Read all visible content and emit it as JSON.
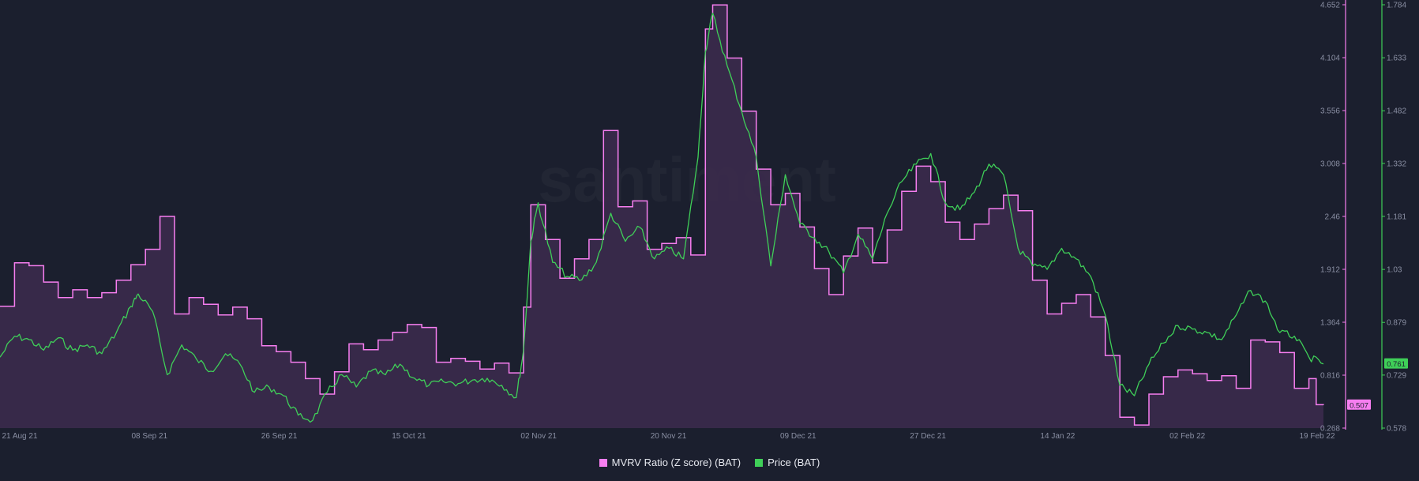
{
  "watermark": "santiment",
  "legend": {
    "mvrv_label": "MVRV Ratio (Z score) (BAT)",
    "price_label": "Price (BAT)"
  },
  "colors": {
    "background": "#1b1f2e",
    "mvrv_line": "#f77ef0",
    "mvrv_fill": "#3c2b4d",
    "price_line": "#3fcf58",
    "axis_text": "#8a8fa3",
    "grid": "#2a2f40"
  },
  "chart_data": {
    "type": "line",
    "title": "",
    "x_ticks": [
      "21 Aug 21",
      "08 Sep 21",
      "26 Sep 21",
      "15 Oct 21",
      "02 Nov 21",
      "20 Nov 21",
      "09 Dec 21",
      "27 Dec 21",
      "14 Jan 22",
      "02 Feb 22",
      "19 Feb 22"
    ],
    "x_range": [
      "2021-08-21",
      "2022-02-19"
    ],
    "grid": false,
    "legend_position": "bottom-center",
    "left_axis": {
      "name": "MVRV Ratio (Z score) (BAT)",
      "ticks": [
        "4.652",
        "4.104",
        "3.556",
        "3.008",
        "2.46",
        "1.912",
        "1.364",
        "0.816",
        "0.268"
      ],
      "range": [
        0.268,
        4.652
      ],
      "last_value_label": "0.507"
    },
    "right_axis": {
      "name": "Price (BAT)",
      "ticks": [
        "1.784",
        "1.633",
        "1.482",
        "1.332",
        "1.181",
        "1.03",
        "0.879",
        "0.729",
        "0.578"
      ],
      "range": [
        0.578,
        1.784
      ],
      "last_value_label": "0.761"
    },
    "series": [
      {
        "name": "MVRV Ratio (Z score) (BAT)",
        "axis": "left",
        "style": "step-area",
        "points": [
          [
            "2021-08-21",
            1.53
          ],
          [
            "2021-08-23",
            1.98
          ],
          [
            "2021-08-25",
            1.95
          ],
          [
            "2021-08-27",
            1.78
          ],
          [
            "2021-08-29",
            1.62
          ],
          [
            "2021-08-31",
            1.7
          ],
          [
            "2021-09-02",
            1.62
          ],
          [
            "2021-09-04",
            1.67
          ],
          [
            "2021-09-06",
            1.8
          ],
          [
            "2021-09-08",
            1.96
          ],
          [
            "2021-09-10",
            2.12
          ],
          [
            "2021-09-12",
            2.46
          ],
          [
            "2021-09-14",
            1.45
          ],
          [
            "2021-09-16",
            1.62
          ],
          [
            "2021-09-18",
            1.55
          ],
          [
            "2021-09-20",
            1.44
          ],
          [
            "2021-09-22",
            1.52
          ],
          [
            "2021-09-24",
            1.4
          ],
          [
            "2021-09-26",
            1.12
          ],
          [
            "2021-09-28",
            1.06
          ],
          [
            "2021-09-30",
            0.95
          ],
          [
            "2021-10-02",
            0.78
          ],
          [
            "2021-10-04",
            0.62
          ],
          [
            "2021-10-06",
            0.85
          ],
          [
            "2021-10-08",
            1.14
          ],
          [
            "2021-10-10",
            1.08
          ],
          [
            "2021-10-12",
            1.18
          ],
          [
            "2021-10-14",
            1.26
          ],
          [
            "2021-10-16",
            1.34
          ],
          [
            "2021-10-18",
            1.31
          ],
          [
            "2021-10-20",
            0.95
          ],
          [
            "2021-10-22",
            0.99
          ],
          [
            "2021-10-24",
            0.96
          ],
          [
            "2021-10-26",
            0.88
          ],
          [
            "2021-10-28",
            0.94
          ],
          [
            "2021-10-30",
            0.84
          ],
          [
            "2021-11-01",
            1.52
          ],
          [
            "2021-11-02",
            2.58
          ],
          [
            "2021-11-04",
            2.22
          ],
          [
            "2021-11-06",
            1.82
          ],
          [
            "2021-11-08",
            2.02
          ],
          [
            "2021-11-10",
            2.22
          ],
          [
            "2021-11-12",
            3.35
          ],
          [
            "2021-11-14",
            2.56
          ],
          [
            "2021-11-16",
            2.62
          ],
          [
            "2021-11-18",
            2.12
          ],
          [
            "2021-11-20",
            2.18
          ],
          [
            "2021-11-22",
            2.24
          ],
          [
            "2021-11-24",
            2.06
          ],
          [
            "2021-11-26",
            4.4
          ],
          [
            "2021-11-27",
            4.65
          ],
          [
            "2021-11-29",
            4.1
          ],
          [
            "2021-12-01",
            3.55
          ],
          [
            "2021-12-03",
            2.95
          ],
          [
            "2021-12-05",
            2.58
          ],
          [
            "2021-12-07",
            2.7
          ],
          [
            "2021-12-09",
            2.35
          ],
          [
            "2021-12-11",
            1.92
          ],
          [
            "2021-12-13",
            1.65
          ],
          [
            "2021-12-15",
            2.05
          ],
          [
            "2021-12-17",
            2.34
          ],
          [
            "2021-12-19",
            1.98
          ],
          [
            "2021-12-21",
            2.32
          ],
          [
            "2021-12-23",
            2.72
          ],
          [
            "2021-12-25",
            2.98
          ],
          [
            "2021-12-27",
            2.82
          ],
          [
            "2021-12-29",
            2.4
          ],
          [
            "2021-12-31",
            2.22
          ],
          [
            "2022-01-02",
            2.38
          ],
          [
            "2022-01-04",
            2.54
          ],
          [
            "2022-01-06",
            2.68
          ],
          [
            "2022-01-08",
            2.52
          ],
          [
            "2022-01-10",
            1.8
          ],
          [
            "2022-01-12",
            1.45
          ],
          [
            "2022-01-14",
            1.56
          ],
          [
            "2022-01-16",
            1.65
          ],
          [
            "2022-01-18",
            1.42
          ],
          [
            "2022-01-20",
            1.02
          ],
          [
            "2022-01-22",
            0.38
          ],
          [
            "2022-01-24",
            0.3
          ],
          [
            "2022-01-26",
            0.62
          ],
          [
            "2022-01-28",
            0.8
          ],
          [
            "2022-01-30",
            0.87
          ],
          [
            "2022-02-01",
            0.83
          ],
          [
            "2022-02-03",
            0.76
          ],
          [
            "2022-02-05",
            0.81
          ],
          [
            "2022-02-07",
            0.68
          ],
          [
            "2022-02-09",
            1.18
          ],
          [
            "2022-02-11",
            1.16
          ],
          [
            "2022-02-13",
            1.05
          ],
          [
            "2022-02-15",
            0.68
          ],
          [
            "2022-02-17",
            0.78
          ],
          [
            "2022-02-18",
            0.51
          ],
          [
            "2022-02-19",
            0.507
          ]
        ]
      },
      {
        "name": "Price (BAT)",
        "axis": "right",
        "style": "line",
        "points": [
          [
            "2021-08-21",
            0.78
          ],
          [
            "2021-08-23",
            0.84
          ],
          [
            "2021-08-25",
            0.83
          ],
          [
            "2021-08-27",
            0.8
          ],
          [
            "2021-08-29",
            0.835
          ],
          [
            "2021-08-31",
            0.8
          ],
          [
            "2021-09-02",
            0.815
          ],
          [
            "2021-09-04",
            0.79
          ],
          [
            "2021-09-06",
            0.85
          ],
          [
            "2021-09-08",
            0.925
          ],
          [
            "2021-09-09",
            0.96
          ],
          [
            "2021-09-11",
            0.91
          ],
          [
            "2021-09-13",
            0.73
          ],
          [
            "2021-09-15",
            0.815
          ],
          [
            "2021-09-17",
            0.775
          ],
          [
            "2021-09-19",
            0.74
          ],
          [
            "2021-09-21",
            0.79
          ],
          [
            "2021-09-23",
            0.76
          ],
          [
            "2021-09-25",
            0.68
          ],
          [
            "2021-09-27",
            0.695
          ],
          [
            "2021-09-29",
            0.67
          ],
          [
            "2021-10-01",
            0.615
          ],
          [
            "2021-10-03",
            0.6
          ],
          [
            "2021-10-05",
            0.68
          ],
          [
            "2021-10-07",
            0.73
          ],
          [
            "2021-10-09",
            0.695
          ],
          [
            "2021-10-11",
            0.74
          ],
          [
            "2021-10-13",
            0.73
          ],
          [
            "2021-10-15",
            0.76
          ],
          [
            "2021-10-17",
            0.72
          ],
          [
            "2021-10-19",
            0.7
          ],
          [
            "2021-10-21",
            0.71
          ],
          [
            "2021-10-23",
            0.705
          ],
          [
            "2021-10-25",
            0.715
          ],
          [
            "2021-10-27",
            0.72
          ],
          [
            "2021-10-29",
            0.7
          ],
          [
            "2021-10-31",
            0.665
          ],
          [
            "2021-11-01",
            0.8
          ],
          [
            "2021-11-02",
            1.11
          ],
          [
            "2021-11-03",
            1.22
          ],
          [
            "2021-11-05",
            1.05
          ],
          [
            "2021-11-07",
            1.01
          ],
          [
            "2021-11-09",
            1.0
          ],
          [
            "2021-11-11",
            1.05
          ],
          [
            "2021-11-13",
            1.19
          ],
          [
            "2021-11-15",
            1.11
          ],
          [
            "2021-11-17",
            1.15
          ],
          [
            "2021-11-19",
            1.06
          ],
          [
            "2021-11-21",
            1.09
          ],
          [
            "2021-11-23",
            1.06
          ],
          [
            "2021-11-25",
            1.35
          ],
          [
            "2021-11-26",
            1.65
          ],
          [
            "2021-11-27",
            1.76
          ],
          [
            "2021-11-29",
            1.61
          ],
          [
            "2021-12-01",
            1.48
          ],
          [
            "2021-12-03",
            1.35
          ],
          [
            "2021-12-05",
            1.04
          ],
          [
            "2021-12-07",
            1.3
          ],
          [
            "2021-12-09",
            1.16
          ],
          [
            "2021-12-11",
            1.12
          ],
          [
            "2021-12-13",
            1.08
          ],
          [
            "2021-12-15",
            1.02
          ],
          [
            "2021-12-17",
            1.13
          ],
          [
            "2021-12-19",
            1.06
          ],
          [
            "2021-12-21",
            1.19
          ],
          [
            "2021-12-23",
            1.28
          ],
          [
            "2021-12-25",
            1.33
          ],
          [
            "2021-12-27",
            1.36
          ],
          [
            "2021-12-29",
            1.22
          ],
          [
            "2021-12-31",
            1.2
          ],
          [
            "2022-01-02",
            1.25
          ],
          [
            "2022-01-04",
            1.33
          ],
          [
            "2022-01-06",
            1.3
          ],
          [
            "2022-01-08",
            1.09
          ],
          [
            "2022-01-10",
            1.04
          ],
          [
            "2022-01-12",
            1.03
          ],
          [
            "2022-01-14",
            1.09
          ],
          [
            "2022-01-16",
            1.06
          ],
          [
            "2022-01-18",
            1.01
          ],
          [
            "2022-01-20",
            0.9
          ],
          [
            "2022-01-22",
            0.7
          ],
          [
            "2022-01-24",
            0.67
          ],
          [
            "2022-01-26",
            0.76
          ],
          [
            "2022-01-28",
            0.82
          ],
          [
            "2022-01-30",
            0.87
          ],
          [
            "2022-02-01",
            0.86
          ],
          [
            "2022-02-03",
            0.85
          ],
          [
            "2022-02-05",
            0.83
          ],
          [
            "2022-02-07",
            0.9
          ],
          [
            "2022-02-09",
            0.97
          ],
          [
            "2022-02-11",
            0.94
          ],
          [
            "2022-02-13",
            0.85
          ],
          [
            "2022-02-15",
            0.84
          ],
          [
            "2022-02-17",
            0.78
          ],
          [
            "2022-02-19",
            0.761
          ]
        ]
      }
    ]
  }
}
